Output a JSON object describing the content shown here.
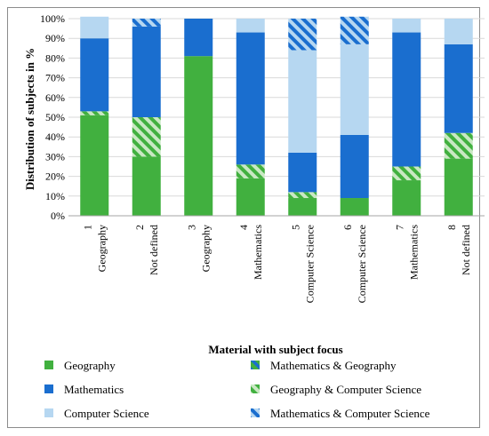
{
  "chart_data": {
    "type": "bar",
    "stacked": true,
    "title": "",
    "xlabel": "Material with subject focus",
    "ylabel": "Distribution of subjects in %",
    "ylim": [
      0,
      100
    ],
    "yticks": [
      "0%",
      "10%",
      "20%",
      "30%",
      "40%",
      "50%",
      "60%",
      "70%",
      "80%",
      "90%",
      "100%"
    ],
    "categories": [
      {
        "num": "1",
        "focus": "Geography"
      },
      {
        "num": "2",
        "focus": "Not defined"
      },
      {
        "num": "3",
        "focus": "Geography"
      },
      {
        "num": "4",
        "focus": "Mathematics"
      },
      {
        "num": "5",
        "focus": "Computer Science"
      },
      {
        "num": "6",
        "focus": "Computer Science"
      },
      {
        "num": "7",
        "focus": "Mathematics"
      },
      {
        "num": "8",
        "focus": "Not defined"
      }
    ],
    "series": [
      {
        "name": "Geography",
        "color": "#41b03f",
        "pattern": "solid",
        "values": [
          51,
          30,
          81,
          19,
          9,
          9,
          18,
          29
        ]
      },
      {
        "name": "Mathematics & Geography",
        "color": "#41b03f",
        "pattern": "stripe-blue",
        "values": [
          0,
          0,
          0,
          0,
          0,
          0,
          0,
          0
        ]
      },
      {
        "name": "Geography & Computer Science",
        "color": "#41b03f",
        "pattern": "stripe-green",
        "values": [
          2,
          20,
          0,
          7,
          3,
          0,
          7,
          13
        ]
      },
      {
        "name": "Mathematics",
        "color": "#1a6ecf",
        "pattern": "solid",
        "values": [
          37,
          46,
          19,
          67,
          20,
          32,
          68,
          45
        ]
      },
      {
        "name": "Computer Science",
        "color": "#b6d7f1",
        "pattern": "solid",
        "values": [
          11,
          0,
          0,
          7,
          52,
          46,
          7,
          13
        ]
      },
      {
        "name": "Mathematics & Computer Science",
        "color": "#1a6ecf",
        "pattern": "stripe-lightblue",
        "values": [
          0,
          4,
          0,
          0,
          16,
          14,
          0,
          0
        ]
      }
    ],
    "legend": {
      "placement": "bottom",
      "order": [
        "Geography",
        "Mathematics & Geography",
        "Mathematics",
        "Geography & Computer Science",
        "Computer Science",
        "Mathematics & Computer Science"
      ]
    },
    "grid": true
  }
}
